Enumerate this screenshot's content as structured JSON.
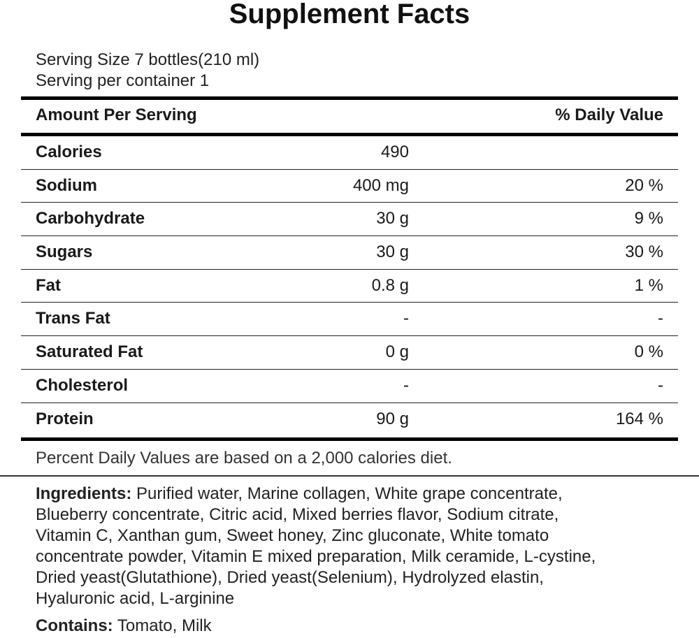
{
  "title": "Supplement Facts",
  "serving_size": "Serving Size 7 bottles(210 ml)",
  "servings_per_container": "Serving per container 1",
  "header": {
    "amount_per_serving": "Amount Per Serving",
    "daily_value": "% Daily Value"
  },
  "rows": [
    {
      "name": "Calories",
      "amount": "490",
      "dv": ""
    },
    {
      "name": "Sodium",
      "amount": "400 mg",
      "dv": "20 %"
    },
    {
      "name": "Carbohydrate",
      "amount": "30 g",
      "dv": "9 %"
    },
    {
      "name": "Sugars",
      "amount": "30 g",
      "dv": "30 %"
    },
    {
      "name": "Fat",
      "amount": "0.8 g",
      "dv": "1 %"
    },
    {
      "name": "Trans Fat",
      "amount": "-",
      "dv": "-"
    },
    {
      "name": "Saturated Fat",
      "amount": "0 g",
      "dv": "0 %"
    },
    {
      "name": "Cholesterol",
      "amount": "-",
      "dv": "-"
    },
    {
      "name": "Protein",
      "amount": "90 g",
      "dv": "164 %"
    }
  ],
  "footnote": "Percent Daily Values are based on a 2,000 calories diet.",
  "ingredients": {
    "label": "Ingredients:",
    "lines": [
      " Purified water, Marine collagen, White grape concentrate,",
      "Blueberry concentrate, Citric acid, Mixed berries flavor, Sodium citrate,",
      "Vitamin C, Xanthan gum, Sweet honey, Zinc gluconate, White tomato",
      "concentrate powder, Vitamin E mixed preparation, Milk ceramide, L-cystine,",
      "Dried yeast(Glutathione), Dried yeast(Selenium), Hydrolyzed elastin,",
      "Hyaluronic acid, L-arginine"
    ]
  },
  "contains": {
    "label": "Contains:",
    "text": " Tomato, Milk"
  }
}
